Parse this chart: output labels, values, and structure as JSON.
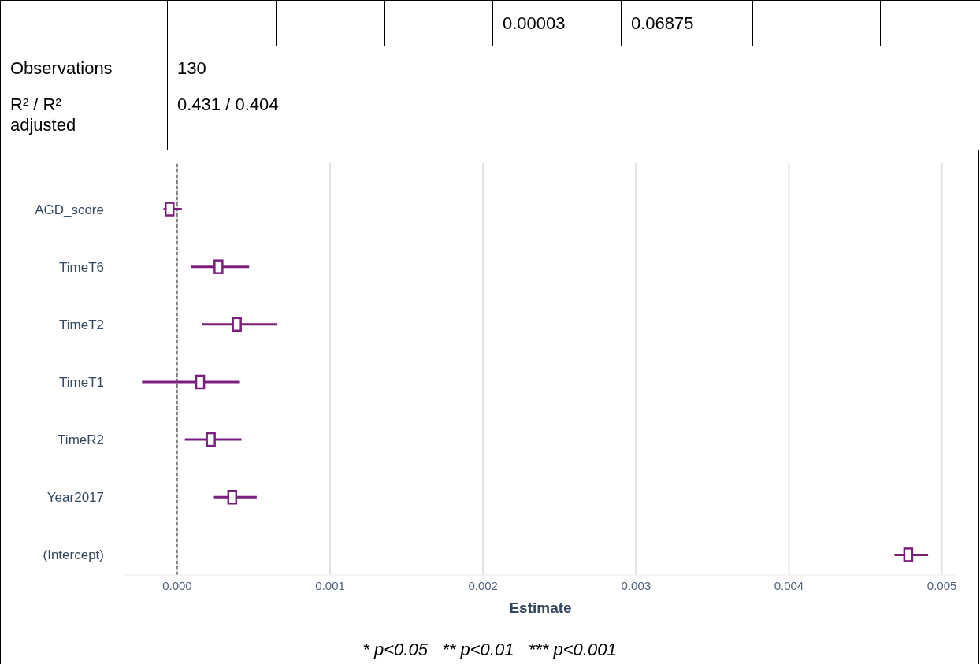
{
  "chart_data": {
    "type": "scatter",
    "orientation": "horizontal",
    "xlabel": "Estimate",
    "categories": [
      "AGD_score",
      "TimeT6",
      "TimeT2",
      "TimeT1",
      "TimeR2",
      "Year2017",
      "(Intercept)"
    ],
    "values": [
      -5e-05,
      0.00027,
      0.00039,
      0.00015,
      0.00022,
      0.00036,
      0.00478
    ],
    "errors": [
      [
        -9e-05,
        3e-05
      ],
      [
        9e-05,
        0.00047
      ],
      [
        0.00016,
        0.00065
      ],
      [
        -0.00023,
        0.00041
      ],
      [
        5e-05,
        0.00042
      ],
      [
        0.00024,
        0.00052
      ],
      [
        0.00469,
        0.00491
      ]
    ],
    "color": "#7b1f7e",
    "marker": "square",
    "grid": "x",
    "xlim": [
      -0.00035,
      0.0051
    ],
    "xticks": [
      {
        "value": 0,
        "label": "0.000"
      },
      {
        "value": 0.001,
        "label": "0.001"
      },
      {
        "value": 0.002,
        "label": "0.002"
      },
      {
        "value": 0.003,
        "label": "0.003"
      },
      {
        "value": 0.004,
        "label": "0.004"
      },
      {
        "value": 0.005,
        "label": "0.005"
      }
    ],
    "ref_lines": [
      {
        "axis": "x",
        "value": 0,
        "line_style": "dashed",
        "color": "#333333"
      }
    ],
    "annotations": [
      "0.00003",
      "0.06875",
      "Observations",
      "130",
      "R² / R² adjusted",
      "0.431 / 0.404",
      "* p<0.05   ** p<0.01   *** p<0.001"
    ]
  }
}
